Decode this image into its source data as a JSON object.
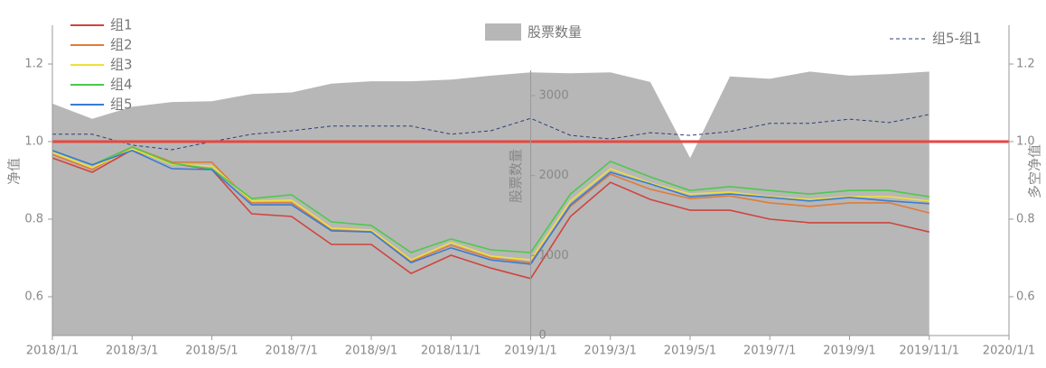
{
  "chart_data": {
    "type": "line",
    "ylabel": "净值",
    "y2label": "多空净值",
    "y3label": "股票数量",
    "xlim": [
      "2018/1/1",
      "2020/1/1"
    ],
    "xticks": [
      "2018/1/1",
      "2018/3/1",
      "2018/5/1",
      "2018/7/1",
      "2018/9/1",
      "2018/11/1",
      "2019/1/1",
      "2019/3/1",
      "2019/5/1",
      "2019/7/1",
      "2019/9/1",
      "2019/11/1",
      "2020/1/1"
    ],
    "ylim": [
      0.5,
      1.3
    ],
    "yticks": [
      0.6,
      0.8,
      {
        "value": 1.0,
        "label": "1.0"
      },
      1.2
    ],
    "y2lim": [
      0.5,
      1.3
    ],
    "y2ticks": [
      0.6,
      0.8,
      {
        "value": 1.0,
        "label": "1.0"
      },
      1.2
    ],
    "y3lim": [
      0,
      3880
    ],
    "y3ticks": [
      0,
      1000,
      2000,
      3000
    ],
    "y3_axis_at": "2019/1/1",
    "reference_line": {
      "value": 1,
      "color": "#e8463f"
    },
    "x": [
      "2018/1/1",
      "2018/2/1",
      "2018/3/1",
      "2018/4/1",
      "2018/5/1",
      "2018/6/1",
      "2018/7/1",
      "2018/8/1",
      "2018/9/1",
      "2018/10/1",
      "2018/11/1",
      "2018/12/1",
      "2019/1/1",
      "2019/2/1",
      "2019/3/1",
      "2019/4/1",
      "2019/5/1",
      "2019/6/1",
      "2019/7/1",
      "2019/8/1",
      "2019/9/1",
      "2019/10/1",
      "2019/11/1"
    ],
    "series": [
      {
        "name": "股票数量",
        "type": "area",
        "axis": "y3",
        "color": "#b7b7b7",
        "values": [
          2900,
          2710,
          2860,
          2920,
          2930,
          3020,
          3040,
          3150,
          3180,
          3180,
          3200,
          3250,
          3290,
          3280,
          3290,
          3170,
          2220,
          3240,
          3210,
          3300,
          3250,
          3270,
          3300
        ]
      },
      {
        "name": "组5-组1",
        "type": "line",
        "dash": true,
        "axis": "y2",
        "color": "#2c3e7a",
        "values": [
          1.019,
          1.019,
          0.991,
          0.979,
          1.0,
          1.019,
          1.028,
          1.04,
          1.04,
          1.04,
          1.019,
          1.028,
          1.06,
          1.016,
          1.007,
          1.023,
          1.016,
          1.026,
          1.047,
          1.047,
          1.058,
          1.049,
          1.07
        ]
      },
      {
        "name": "组1",
        "type": "line",
        "axis": "y",
        "color": "#d0443e",
        "values": [
          0.958,
          0.921,
          0.979,
          0.944,
          0.928,
          0.814,
          0.807,
          0.735,
          0.735,
          0.66,
          0.707,
          0.674,
          0.647,
          0.807,
          0.895,
          0.851,
          0.823,
          0.823,
          0.8,
          0.791,
          0.791,
          0.791,
          0.767
        ]
      },
      {
        "name": "组2",
        "type": "line",
        "axis": "y",
        "color": "#e07b39",
        "values": [
          0.967,
          0.928,
          0.986,
          0.947,
          0.947,
          0.842,
          0.842,
          0.772,
          0.767,
          0.691,
          0.733,
          0.7,
          0.688,
          0.833,
          0.916,
          0.877,
          0.853,
          0.86,
          0.842,
          0.833,
          0.842,
          0.842,
          0.816
        ]
      },
      {
        "name": "组3",
        "type": "line",
        "axis": "y",
        "color": "#efe03a",
        "values": [
          0.972,
          0.933,
          0.981,
          0.942,
          0.937,
          0.847,
          0.849,
          0.777,
          0.772,
          0.695,
          0.74,
          0.705,
          0.695,
          0.847,
          0.93,
          0.893,
          0.865,
          0.87,
          0.858,
          0.851,
          0.858,
          0.858,
          0.847
        ]
      },
      {
        "name": "组4",
        "type": "line",
        "axis": "y",
        "color": "#4cc94c",
        "values": [
          0.977,
          0.94,
          0.986,
          0.944,
          0.93,
          0.853,
          0.863,
          0.793,
          0.784,
          0.714,
          0.749,
          0.721,
          0.714,
          0.865,
          0.949,
          0.909,
          0.874,
          0.884,
          0.874,
          0.865,
          0.874,
          0.874,
          0.858
        ]
      },
      {
        "name": "组5",
        "type": "line",
        "axis": "y",
        "color": "#3a7bd5",
        "values": [
          0.977,
          0.94,
          0.977,
          0.93,
          0.928,
          0.837,
          0.837,
          0.77,
          0.767,
          0.688,
          0.726,
          0.695,
          0.684,
          0.837,
          0.921,
          0.891,
          0.858,
          0.865,
          0.856,
          0.847,
          0.856,
          0.847,
          0.84
        ]
      }
    ]
  }
}
